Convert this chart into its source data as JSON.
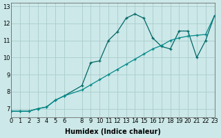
{
  "xlabel": "Humidex (Indice chaleur)",
  "bg_color": "#cce8e8",
  "grid_color": "#aacccc",
  "line1_color": "#006666",
  "line2_color": "#008888",
  "xlim": [
    0,
    23
  ],
  "ylim": [
    6.5,
    13.2
  ],
  "xticks": [
    0,
    1,
    2,
    3,
    4,
    5,
    6,
    8,
    9,
    10,
    11,
    12,
    13,
    14,
    15,
    16,
    17,
    18,
    19,
    20,
    21,
    22,
    23
  ],
  "yticks": [
    7,
    8,
    9,
    10,
    11,
    12,
    13
  ],
  "curve1_x": [
    0,
    1,
    2,
    3,
    4,
    5,
    6,
    8,
    9,
    10,
    11,
    12,
    13,
    14,
    15,
    16,
    17,
    18,
    19,
    20,
    21,
    22,
    23
  ],
  "curve1_y": [
    6.85,
    6.85,
    6.85,
    7.0,
    7.1,
    7.5,
    7.75,
    8.35,
    9.7,
    9.8,
    11.0,
    11.5,
    12.3,
    12.55,
    12.3,
    11.15,
    10.65,
    10.5,
    11.55,
    11.55,
    10.0,
    11.0,
    12.45
  ],
  "curve2_x": [
    0,
    1,
    2,
    3,
    4,
    5,
    6,
    8,
    9,
    10,
    11,
    12,
    13,
    14,
    15,
    16,
    17,
    18,
    19,
    20,
    21,
    22,
    23
  ],
  "curve2_y": [
    6.85,
    6.85,
    6.85,
    7.0,
    7.1,
    7.5,
    7.75,
    8.1,
    8.4,
    8.7,
    9.0,
    9.3,
    9.6,
    9.9,
    10.2,
    10.5,
    10.7,
    11.0,
    11.15,
    11.25,
    11.3,
    11.35,
    12.45
  ],
  "tick_fontsize": 6,
  "axis_fontsize": 7
}
